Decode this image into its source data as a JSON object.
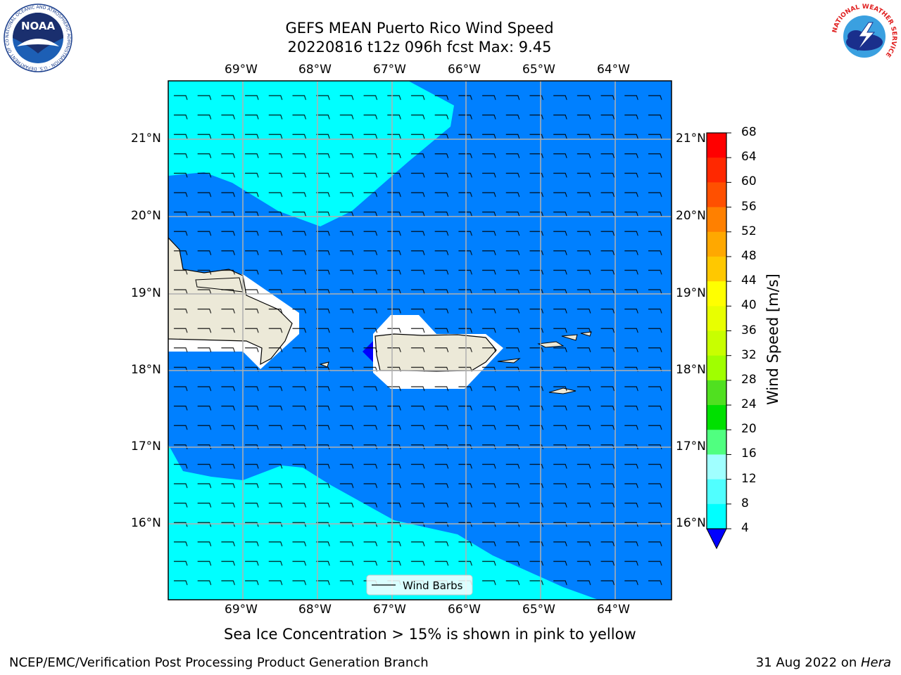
{
  "title": {
    "line1": "GEFS MEAN Puerto Rico Wind Speed",
    "line2": "20220816 t12z 096h fcst   Max: 9.45"
  },
  "map": {
    "lon_labels": [
      "69°W",
      "68°W",
      "67°W",
      "66°W",
      "65°W",
      "64°W"
    ],
    "lat_labels": [
      "21°N",
      "20°N",
      "19°N",
      "18°N",
      "17°N",
      "16°N"
    ],
    "land_color": "#ece9d8",
    "shades": {
      "cyan": "#00ffff",
      "blue": "#0080ff",
      "deep_blue": "#0000ff"
    },
    "legend_label": "Wind Barbs"
  },
  "colorbar": {
    "label": "Wind Speed [m/s]",
    "ticks": [
      "68",
      "64",
      "60",
      "56",
      "52",
      "48",
      "44",
      "40",
      "36",
      "32",
      "28",
      "24",
      "20",
      "16",
      "12",
      "8",
      "4"
    ],
    "colors": [
      "#ff0000",
      "#ff2800",
      "#ff5000",
      "#ff8000",
      "#ffa800",
      "#ffc800",
      "#ffff00",
      "#e8ff00",
      "#c8ff00",
      "#a0ff00",
      "#50e020",
      "#00e000",
      "#50ff80",
      "#a0ffff",
      "#50ffff",
      "#00ffff",
      "#0080ff"
    ],
    "extend_color": "#0000ff"
  },
  "subtitle": "Sea Ice Concentration > 15% is shown in pink to yellow",
  "footer": {
    "left": "NCEP/EMC/Verification Post Processing Product Generation Branch",
    "right_prefix": "31 Aug 2022 on ",
    "right_host": "Hera"
  },
  "logos": {
    "noaa_text": "NOAA",
    "noaa_ring": "NATIONAL OCEANIC AND ATMOSPHERIC ADMINISTRATION · U.S. DEPARTMENT OF COMMERCE",
    "nws_ring": "NATIONAL WEATHER SERVICE"
  }
}
